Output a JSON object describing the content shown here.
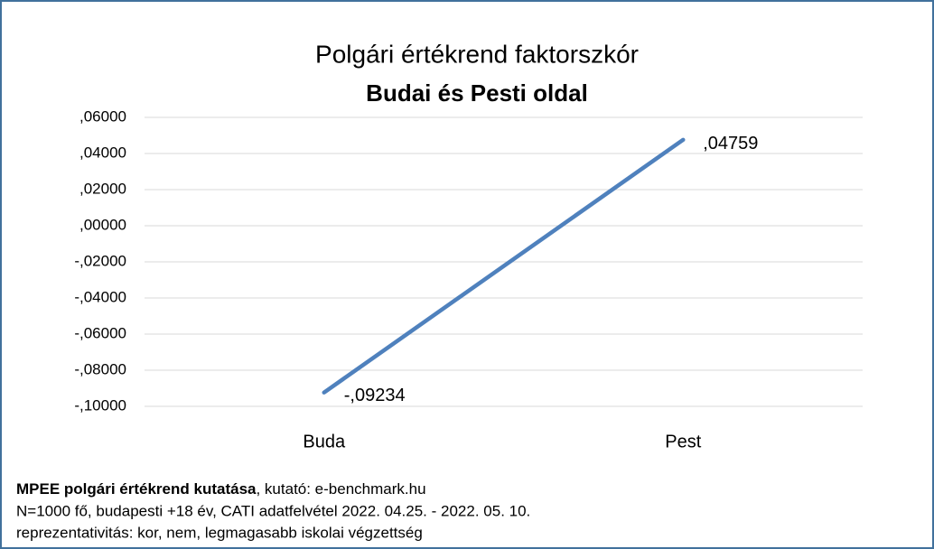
{
  "chart_data": {
    "type": "line",
    "title": "Polgári értékrend faktorszkór",
    "subtitle": "Budai és Pesti oldal",
    "categories": [
      "Buda",
      "Pest"
    ],
    "values": [
      -0.09234,
      0.04759
    ],
    "value_labels": [
      "-,09234",
      ",04759"
    ],
    "color": "#4f81bd",
    "ylim": [
      -0.1,
      0.06
    ],
    "yticks": [
      {
        "value": 0.06,
        "label": ",06000"
      },
      {
        "value": 0.04,
        "label": ",04000"
      },
      {
        "value": 0.02,
        "label": ",02000"
      },
      {
        "value": 0,
        "label": ",00000"
      },
      {
        "value": -0.02,
        "label": "-,02000"
      },
      {
        "value": -0.04,
        "label": "-,04000"
      },
      {
        "value": -0.06,
        "label": "-,06000"
      },
      {
        "value": -0.08,
        "label": "-,08000"
      },
      {
        "value": -0.1,
        "label": "-,10000"
      }
    ],
    "grid": true,
    "footnote": {
      "bold": "MPEE polgári értékrend kutatása",
      "rest": ", kutató: e-benchmark.hu",
      "lines": [
        "N=1000 fő, budapesti +18 év, CATI adatfelvétel 2022. 04.25. - 2022. 05. 10.",
        "reprezentativitás: kor, nem, legmagasabb iskolai végzettség"
      ]
    }
  }
}
